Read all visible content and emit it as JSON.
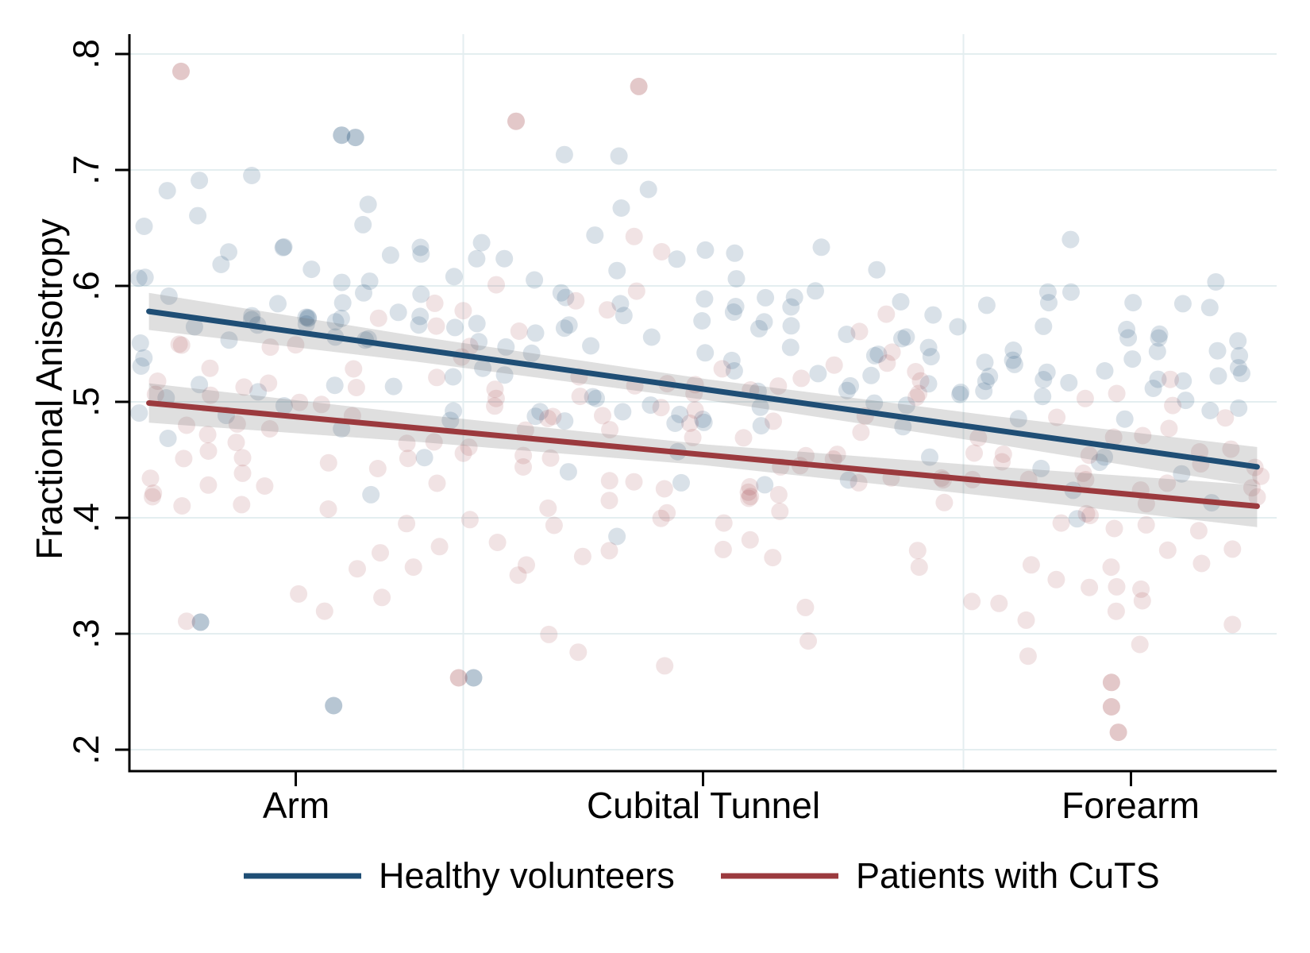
{
  "figure": {
    "background": "#ffffff",
    "axis_color": "#000000",
    "grid_color": "#e4eef0"
  },
  "chart_data": {
    "type": "scatter",
    "title": "",
    "xlabel": "",
    "ylabel": "Fractional Anisotropy",
    "ylim": [
      0.18,
      0.82
    ],
    "yticks": [
      0.2,
      0.3,
      0.4,
      0.5,
      0.6,
      0.7,
      0.8
    ],
    "ytick_labels": [
      ".2",
      ".3",
      ".4",
      ".5",
      ".6",
      ".7",
      ".8"
    ],
    "x_categories": [
      {
        "label": "Arm",
        "pos": 0.145
      },
      {
        "label": "Cubital Tunnel",
        "pos": 0.5
      },
      {
        "label": "Forearm",
        "pos": 0.873
      }
    ],
    "x_gridlines": [
      0.291,
      0.727
    ],
    "grid_on": true,
    "legend_position": "bottom",
    "ci_color": "#6f6f6f",
    "ci_alpha": 0.22,
    "point_radius": 11,
    "series": [
      {
        "name": "Healthy volunteers",
        "color": "#1f4e75",
        "point_alpha": 0.17,
        "trend": {
          "x": [
            0.017,
            0.983
          ],
          "y": [
            0.578,
            0.444
          ]
        },
        "ci": {
          "x": [
            0.017,
            0.25,
            0.5,
            0.75,
            0.983
          ],
          "halfwidth": [
            0.016,
            0.011,
            0.009,
            0.012,
            0.017
          ]
        },
        "cloud": {
          "columns": 40,
          "points_per_column_min": 3,
          "points_per_column_max": 7,
          "region_means": [
            0.588,
            0.538,
            0.523
          ],
          "sd": 0.062,
          "ymin": 0.215,
          "ymax": 0.79,
          "seed": 41
        },
        "outliers": [
          [
            0.185,
            0.73
          ],
          [
            0.197,
            0.728
          ],
          [
            0.178,
            0.238
          ],
          [
            0.062,
            0.31
          ],
          [
            0.3,
            0.262
          ]
        ]
      },
      {
        "name": "Patients with CuTS",
        "color": "#9b3a3e",
        "point_alpha": 0.14,
        "trend": {
          "x": [
            0.017,
            0.983
          ],
          "y": [
            0.499,
            0.41
          ]
        },
        "ci": {
          "x": [
            0.017,
            0.25,
            0.5,
            0.75,
            0.983
          ],
          "halfwidth": [
            0.017,
            0.012,
            0.009,
            0.013,
            0.018
          ]
        },
        "cloud": {
          "columns": 40,
          "points_per_column_min": 3,
          "points_per_column_max": 7,
          "region_means": [
            0.462,
            0.448,
            0.413
          ],
          "sd": 0.075,
          "ymin": 0.21,
          "ymax": 0.79,
          "seed": 97
        },
        "outliers": [
          [
            0.045,
            0.785
          ],
          [
            0.444,
            0.772
          ],
          [
            0.337,
            0.742
          ],
          [
            0.856,
            0.258
          ],
          [
            0.856,
            0.237
          ],
          [
            0.862,
            0.215
          ],
          [
            0.287,
            0.262
          ]
        ]
      }
    ]
  },
  "legend": {
    "items": [
      {
        "label": "Healthy volunteers"
      },
      {
        "label": "Patients with CuTS"
      }
    ]
  }
}
